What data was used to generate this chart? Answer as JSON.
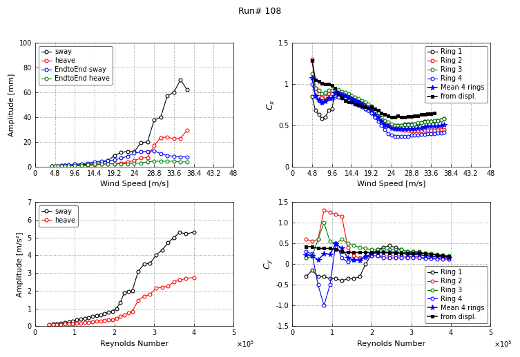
{
  "title": "Run# 108",
  "top_left": {
    "xlabel": "Wind Speed [m/s]",
    "ylabel": "Amplitude [mm]",
    "xlim": [
      0,
      48
    ],
    "ylim": [
      0,
      100
    ],
    "xticks": [
      0,
      4.8,
      9.6,
      14.4,
      19.2,
      24,
      28.8,
      33.6,
      38.4,
      43.2,
      48
    ],
    "yticks": [
      0,
      20,
      40,
      60,
      80,
      100
    ],
    "sway_x": [
      4.0,
      4.8,
      5.6,
      6.4,
      7.2,
      8.0,
      9.6,
      11.2,
      12.8,
      14.4,
      16.0,
      17.6,
      19.2,
      20.8,
      22.4,
      24.0,
      25.6,
      27.2,
      28.8,
      30.4,
      32.0,
      33.6,
      35.2,
      36.8
    ],
    "sway_y": [
      0.5,
      0.5,
      0.8,
      0.8,
      1.0,
      1.2,
      1.5,
      1.8,
      2.0,
      2.5,
      3.5,
      5.0,
      9.0,
      11.5,
      12.5,
      12.0,
      19.5,
      20.0,
      37.5,
      40.0,
      57.0,
      60.0,
      70.0,
      62.0
    ],
    "heave_x": [
      4.0,
      4.8,
      5.6,
      6.4,
      7.2,
      8.0,
      9.6,
      11.2,
      12.8,
      14.4,
      16.0,
      17.6,
      19.2,
      20.8,
      22.4,
      24.0,
      25.6,
      27.2,
      28.8,
      30.4,
      32.0,
      33.6,
      35.2,
      36.8
    ],
    "heave_y": [
      0.5,
      0.5,
      0.8,
      1.0,
      1.0,
      1.0,
      1.0,
      1.0,
      1.0,
      1.5,
      2.0,
      2.5,
      2.5,
      3.0,
      4.0,
      5.0,
      7.0,
      7.5,
      17.0,
      23.5,
      24.0,
      22.5,
      23.0,
      29.5
    ],
    "e2e_sway_x": [
      4.0,
      4.8,
      5.6,
      6.4,
      7.2,
      8.0,
      9.6,
      11.2,
      12.8,
      14.4,
      16.0,
      17.6,
      19.2,
      20.8,
      22.4,
      24.0,
      25.6,
      27.2,
      28.8,
      30.4,
      32.0,
      33.6,
      35.2,
      36.8
    ],
    "e2e_sway_y": [
      0.5,
      0.5,
      0.8,
      1.0,
      1.2,
      1.5,
      2.0,
      2.5,
      3.0,
      4.0,
      4.5,
      5.0,
      5.5,
      7.0,
      8.5,
      11.0,
      12.0,
      12.5,
      13.0,
      10.5,
      9.0,
      8.5,
      8.0,
      8.0
    ],
    "e2e_heave_x": [
      4.0,
      4.8,
      5.6,
      6.4,
      7.2,
      8.0,
      9.6,
      11.2,
      12.8,
      14.4,
      16.0,
      17.6,
      19.2,
      20.8,
      22.4,
      24.0,
      25.6,
      27.2,
      28.8,
      30.4,
      32.0,
      33.6,
      35.2,
      36.8
    ],
    "e2e_heave_y": [
      0.3,
      0.3,
      0.5,
      0.5,
      0.5,
      0.8,
      1.0,
      1.0,
      1.5,
      2.0,
      2.0,
      2.5,
      2.5,
      2.5,
      2.5,
      3.0,
      3.0,
      4.0,
      4.5,
      4.5,
      4.5,
      4.5,
      4.0,
      4.0
    ]
  },
  "top_right": {
    "xlabel": "Wind Speed [m/s]",
    "ylabel": "C_x",
    "xlim": [
      0,
      48
    ],
    "ylim": [
      0,
      1.5
    ],
    "xticks": [
      0,
      4.8,
      9.6,
      14.4,
      19.2,
      24,
      28.8,
      33.6,
      38.4,
      43.2,
      48
    ],
    "yticks": [
      0,
      0.5,
      1.0,
      1.5
    ],
    "ring1_x": [
      4.8,
      5.6,
      6.4,
      7.2,
      8.0,
      8.8,
      9.6,
      10.4,
      11.2,
      12.0,
      12.8,
      13.6,
      14.4,
      15.2,
      16.0,
      16.8,
      17.6,
      18.4,
      19.2,
      20.0,
      20.8,
      21.6,
      22.4,
      23.2,
      24.0,
      24.8,
      25.6,
      26.4,
      27.2,
      28.0,
      28.8,
      29.6,
      30.4,
      31.2,
      32.0,
      32.8,
      33.6,
      34.4,
      35.2,
      36.0,
      36.8
    ],
    "ring1_y": [
      0.85,
      0.68,
      0.63,
      0.58,
      0.6,
      0.68,
      0.7,
      0.9,
      0.88,
      0.85,
      0.83,
      0.82,
      0.8,
      0.78,
      0.75,
      0.73,
      0.7,
      0.68,
      0.65,
      0.6,
      0.58,
      0.55,
      0.5,
      0.5,
      0.5,
      0.5,
      0.5,
      0.5,
      0.52,
      0.52,
      0.52,
      0.52,
      0.52,
      0.53,
      0.55,
      0.55,
      0.55,
      0.55,
      0.56,
      0.57,
      0.58
    ],
    "ring2_x": [
      4.8,
      5.6,
      6.4,
      7.2,
      8.0,
      8.8,
      9.6,
      10.4,
      11.2,
      12.0,
      12.8,
      13.6,
      14.4,
      15.2,
      16.0,
      16.8,
      17.6,
      18.4,
      19.2,
      20.0,
      20.8,
      21.6,
      22.4,
      23.2,
      24.0,
      24.8,
      25.6,
      26.4,
      27.2,
      28.0,
      28.8,
      29.6,
      30.4,
      31.2,
      32.0,
      32.8,
      33.6,
      34.4,
      35.2,
      36.0,
      36.8
    ],
    "ring2_y": [
      1.3,
      0.95,
      0.88,
      0.83,
      0.85,
      0.88,
      0.88,
      0.9,
      0.9,
      0.88,
      0.87,
      0.86,
      0.83,
      0.82,
      0.8,
      0.78,
      0.75,
      0.73,
      0.68,
      0.62,
      0.6,
      0.55,
      0.52,
      0.5,
      0.48,
      0.47,
      0.46,
      0.45,
      0.44,
      0.44,
      0.43,
      0.43,
      0.43,
      0.43,
      0.44,
      0.44,
      0.44,
      0.44,
      0.44,
      0.45,
      0.45
    ],
    "ring3_x": [
      4.8,
      5.6,
      6.4,
      7.2,
      8.0,
      8.8,
      9.6,
      10.4,
      11.2,
      12.0,
      12.8,
      13.6,
      14.4,
      15.2,
      16.0,
      16.8,
      17.6,
      18.4,
      19.2,
      20.0,
      20.8,
      21.6,
      22.4,
      23.2,
      24.0,
      24.8,
      25.6,
      26.4,
      27.2,
      28.0,
      28.8,
      29.6,
      30.4,
      31.2,
      32.0,
      32.8,
      33.6,
      34.4,
      35.2,
      36.0,
      36.8
    ],
    "ring3_y": [
      1.12,
      0.95,
      0.92,
      0.88,
      0.9,
      0.92,
      0.92,
      0.93,
      0.93,
      0.91,
      0.9,
      0.88,
      0.86,
      0.84,
      0.82,
      0.8,
      0.78,
      0.76,
      0.73,
      0.68,
      0.65,
      0.6,
      0.56,
      0.54,
      0.52,
      0.5,
      0.5,
      0.5,
      0.51,
      0.51,
      0.51,
      0.52,
      0.53,
      0.53,
      0.54,
      0.55,
      0.55,
      0.56,
      0.56,
      0.57,
      0.58
    ],
    "ring4_x": [
      4.8,
      5.6,
      6.4,
      7.2,
      8.0,
      8.8,
      9.6,
      10.4,
      11.2,
      12.0,
      12.8,
      13.6,
      14.4,
      15.2,
      16.0,
      16.8,
      17.6,
      18.4,
      19.2,
      20.0,
      20.8,
      21.6,
      22.4,
      23.2,
      24.0,
      24.8,
      25.6,
      26.4,
      27.2,
      28.0,
      28.8,
      29.6,
      30.4,
      31.2,
      32.0,
      32.8,
      33.6,
      34.4,
      35.2,
      36.0,
      36.8
    ],
    "ring4_y": [
      1.0,
      0.85,
      0.8,
      0.78,
      0.8,
      0.82,
      0.82,
      0.84,
      0.84,
      0.83,
      0.82,
      0.8,
      0.78,
      0.76,
      0.74,
      0.72,
      0.7,
      0.68,
      0.65,
      0.6,
      0.55,
      0.5,
      0.45,
      0.4,
      0.38,
      0.37,
      0.37,
      0.37,
      0.37,
      0.37,
      0.38,
      0.38,
      0.38,
      0.39,
      0.39,
      0.4,
      0.4,
      0.4,
      0.41,
      0.41,
      0.42
    ],
    "mean_x": [
      4.8,
      5.6,
      6.4,
      7.2,
      8.0,
      8.8,
      9.6,
      10.4,
      11.2,
      12.0,
      12.8,
      13.6,
      14.4,
      15.2,
      16.0,
      16.8,
      17.6,
      18.4,
      19.2,
      20.0,
      20.8,
      21.6,
      22.4,
      23.2,
      24.0,
      24.8,
      25.6,
      26.4,
      27.2,
      28.0,
      28.8,
      29.6,
      30.4,
      31.2,
      32.0,
      32.8,
      33.6,
      34.4,
      35.2,
      36.0,
      36.8
    ],
    "mean_y": [
      1.07,
      0.86,
      0.81,
      0.77,
      0.79,
      0.83,
      0.83,
      0.89,
      0.89,
      0.87,
      0.86,
      0.84,
      0.82,
      0.8,
      0.78,
      0.76,
      0.73,
      0.71,
      0.68,
      0.63,
      0.6,
      0.55,
      0.51,
      0.49,
      0.47,
      0.46,
      0.46,
      0.46,
      0.46,
      0.46,
      0.46,
      0.46,
      0.47,
      0.47,
      0.48,
      0.49,
      0.49,
      0.49,
      0.49,
      0.5,
      0.51
    ],
    "displ_x": [
      4.8,
      5.6,
      6.4,
      7.2,
      8.0,
      8.8,
      9.6,
      10.4,
      11.2,
      12.0,
      12.8,
      13.6,
      14.4,
      15.2,
      16.0,
      16.8,
      17.6,
      18.4,
      19.2,
      20.0,
      20.8,
      21.6,
      22.4,
      23.2,
      24.0,
      24.8,
      25.6,
      26.4,
      27.2,
      28.0,
      28.8,
      29.6,
      30.4,
      31.2,
      32.0,
      32.8,
      33.6,
      34.4
    ],
    "displ_y": [
      1.28,
      1.05,
      1.03,
      1.01,
      1.0,
      1.0,
      0.98,
      0.95,
      0.87,
      0.83,
      0.8,
      0.78,
      0.78,
      0.76,
      0.75,
      0.73,
      0.72,
      0.71,
      0.72,
      0.7,
      0.68,
      0.65,
      0.63,
      0.62,
      0.6,
      0.6,
      0.62,
      0.6,
      0.6,
      0.61,
      0.61,
      0.62,
      0.62,
      0.63,
      0.63,
      0.64,
      0.64,
      0.65
    ]
  },
  "bottom_left": {
    "xlabel": "Reynolds Number",
    "ylabel": "Amplitude [m/s²]",
    "xlim": [
      0,
      500000.0
    ],
    "ylim": [
      0,
      7
    ],
    "xtick_labels": [
      "0",
      "1",
      "2",
      "3",
      "4",
      "5"
    ],
    "xticks": [
      0,
      100000.0,
      200000.0,
      300000.0,
      400000.0,
      500000.0
    ],
    "yticks": [
      0,
      1,
      2,
      3,
      4,
      5,
      6,
      7
    ],
    "sway_x": [
      35000.0,
      45000.0,
      55000.0,
      65000.0,
      75000.0,
      85000.0,
      95000.0,
      105000.0,
      115000.0,
      125000.0,
      135000.0,
      145000.0,
      155000.0,
      165000.0,
      175000.0,
      185000.0,
      195000.0,
      205000.0,
      215000.0,
      225000.0,
      235000.0,
      245000.0,
      260000.0,
      275000.0,
      290000.0,
      305000.0,
      320000.0,
      335000.0,
      350000.0,
      365000.0,
      380000.0,
      400000.0
    ],
    "sway_y": [
      0.1,
      0.12,
      0.15,
      0.18,
      0.2,
      0.25,
      0.3,
      0.35,
      0.4,
      0.45,
      0.5,
      0.55,
      0.6,
      0.65,
      0.7,
      0.8,
      0.85,
      1.0,
      1.35,
      1.9,
      1.95,
      2.0,
      3.1,
      3.5,
      3.55,
      4.0,
      4.3,
      4.7,
      5.0,
      5.3,
      5.2,
      5.3
    ],
    "heave_x": [
      35000.0,
      45000.0,
      55000.0,
      65000.0,
      75000.0,
      85000.0,
      95000.0,
      105000.0,
      115000.0,
      125000.0,
      135000.0,
      145000.0,
      155000.0,
      165000.0,
      175000.0,
      185000.0,
      195000.0,
      205000.0,
      215000.0,
      225000.0,
      235000.0,
      245000.0,
      260000.0,
      275000.0,
      290000.0,
      305000.0,
      320000.0,
      335000.0,
      350000.0,
      365000.0,
      380000.0,
      400000.0
    ],
    "heave_y": [
      0.08,
      0.09,
      0.1,
      0.1,
      0.12,
      0.13,
      0.14,
      0.16,
      0.18,
      0.2,
      0.22,
      0.25,
      0.28,
      0.3,
      0.32,
      0.35,
      0.38,
      0.45,
      0.55,
      0.65,
      0.75,
      0.85,
      1.45,
      1.7,
      1.8,
      2.15,
      2.2,
      2.25,
      2.5,
      2.6,
      2.7,
      2.75
    ]
  },
  "bottom_right": {
    "xlabel": "Reynolds Number",
    "ylabel": "C_y",
    "xlim": [
      0,
      500000.0
    ],
    "ylim": [
      -1.5,
      1.5
    ],
    "xtick_labels": [
      "0",
      "1",
      "2",
      "3",
      "4",
      "5"
    ],
    "xticks": [
      0,
      100000.0,
      200000.0,
      300000.0,
      400000.0,
      500000.0
    ],
    "yticks": [
      -1.5,
      -1.0,
      -0.5,
      0,
      0.5,
      1.0,
      1.5
    ],
    "ring1_x": [
      35000.0,
      50000.0,
      65000.0,
      80000.0,
      95000.0,
      110000.0,
      125000.0,
      140000.0,
      155000.0,
      170000.0,
      185000.0,
      200000.0,
      215000.0,
      230000.0,
      245000.0,
      260000.0,
      275000.0,
      290000.0,
      305000.0,
      320000.0,
      335000.0,
      350000.0,
      365000.0,
      380000.0,
      395000.0
    ],
    "ring1_y": [
      -0.3,
      -0.15,
      -0.3,
      -0.3,
      -0.35,
      -0.35,
      -0.4,
      -0.35,
      -0.35,
      -0.3,
      0.0,
      0.25,
      0.35,
      0.4,
      0.45,
      0.4,
      0.35,
      0.3,
      0.3,
      0.3,
      0.25,
      0.25,
      0.22,
      0.2,
      0.18
    ],
    "ring2_x": [
      35000.0,
      50000.0,
      65000.0,
      80000.0,
      95000.0,
      110000.0,
      125000.0,
      140000.0,
      155000.0,
      170000.0,
      185000.0,
      200000.0,
      215000.0,
      230000.0,
      245000.0,
      260000.0,
      275000.0,
      290000.0,
      305000.0,
      320000.0,
      335000.0,
      350000.0,
      365000.0,
      380000.0,
      395000.0
    ],
    "ring2_y": [
      0.6,
      0.55,
      0.6,
      1.3,
      1.25,
      1.2,
      1.15,
      0.4,
      0.2,
      0.15,
      0.15,
      0.2,
      0.2,
      0.2,
      0.2,
      0.2,
      0.2,
      0.18,
      0.18,
      0.18,
      0.15,
      0.15,
      0.15,
      0.15,
      0.12
    ],
    "ring3_x": [
      35000.0,
      50000.0,
      65000.0,
      80000.0,
      95000.0,
      110000.0,
      125000.0,
      140000.0,
      155000.0,
      170000.0,
      185000.0,
      200000.0,
      215000.0,
      230000.0,
      245000.0,
      260000.0,
      275000.0,
      290000.0,
      305000.0,
      320000.0,
      335000.0,
      350000.0,
      365000.0,
      380000.0,
      395000.0
    ],
    "ring3_y": [
      0.15,
      0.18,
      0.6,
      1.0,
      0.55,
      0.5,
      0.6,
      0.5,
      0.45,
      0.4,
      0.38,
      0.35,
      0.35,
      0.35,
      0.35,
      0.35,
      0.35,
      0.3,
      0.3,
      0.28,
      0.27,
      0.25,
      0.23,
      0.22,
      0.2
    ],
    "ring4_x": [
      35000.0,
      50000.0,
      65000.0,
      80000.0,
      95000.0,
      110000.0,
      125000.0,
      140000.0,
      155000.0,
      170000.0,
      185000.0,
      200000.0,
      215000.0,
      230000.0,
      245000.0,
      260000.0,
      275000.0,
      290000.0,
      305000.0,
      320000.0,
      335000.0,
      350000.0,
      365000.0,
      380000.0,
      395000.0
    ],
    "ring4_y": [
      0.3,
      0.25,
      -0.5,
      -1.0,
      -0.5,
      0.5,
      0.15,
      0.05,
      0.1,
      0.12,
      0.18,
      0.2,
      0.2,
      0.15,
      0.15,
      0.15,
      0.15,
      0.15,
      0.15,
      0.15,
      0.13,
      0.13,
      0.12,
      0.12,
      0.12
    ],
    "mean_x": [
      35000.0,
      50000.0,
      65000.0,
      80000.0,
      95000.0,
      110000.0,
      125000.0,
      140000.0,
      155000.0,
      170000.0,
      185000.0,
      200000.0,
      215000.0,
      230000.0,
      245000.0,
      260000.0,
      275000.0,
      290000.0,
      305000.0,
      320000.0,
      335000.0,
      350000.0,
      365000.0,
      380000.0,
      395000.0
    ],
    "mean_y": [
      0.22,
      0.21,
      0.1,
      0.25,
      0.24,
      0.49,
      0.38,
      0.15,
      0.1,
      0.09,
      0.18,
      0.25,
      0.28,
      0.28,
      0.29,
      0.28,
      0.26,
      0.24,
      0.23,
      0.23,
      0.2,
      0.19,
      0.18,
      0.18,
      0.16
    ],
    "displ_x": [
      35000.0,
      50000.0,
      65000.0,
      80000.0,
      95000.0,
      110000.0,
      125000.0,
      140000.0,
      155000.0,
      170000.0,
      185000.0,
      200000.0,
      215000.0,
      230000.0,
      245000.0,
      260000.0,
      275000.0,
      290000.0,
      305000.0,
      320000.0,
      335000.0,
      350000.0,
      365000.0,
      380000.0,
      395000.0
    ],
    "displ_y": [
      0.42,
      0.42,
      0.38,
      0.38,
      0.38,
      0.36,
      0.3,
      0.28,
      0.28,
      0.28,
      0.28,
      0.28,
      0.28,
      0.28,
      0.27,
      0.27,
      0.27,
      0.27,
      0.27,
      0.27,
      0.25,
      0.24,
      0.22,
      0.2,
      0.18
    ]
  }
}
